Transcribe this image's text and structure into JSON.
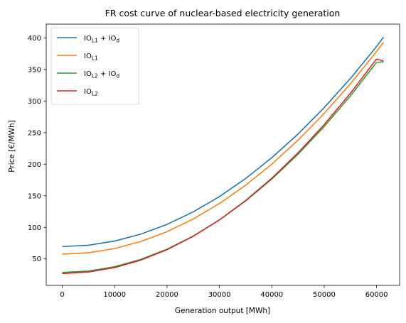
{
  "chart_data": {
    "type": "line",
    "title": "FR cost curve of nuclear-based electricity generation",
    "xlabel": "Generation output [MWh]",
    "ylabel": "Price [€/MWh]",
    "xlim": [
      -3066,
      64396
    ],
    "ylim": [
      8.1,
      421.8
    ],
    "xticks": [
      0,
      10000,
      20000,
      30000,
      40000,
      50000,
      60000
    ],
    "yticks": [
      50,
      100,
      150,
      200,
      250,
      300,
      350,
      400
    ],
    "grid": false,
    "legend_position": "upper-left",
    "x": [
      0,
      5000,
      10000,
      15000,
      20000,
      25000,
      30000,
      35000,
      40000,
      45000,
      50000,
      55000,
      60000,
      61330
    ],
    "series": [
      {
        "base": "IO",
        "sub1": "L1",
        "extra": " + IO",
        "sub2": "d",
        "color": "#1f77b4",
        "values": [
          69.5,
          71.7,
          78.3,
          89.3,
          104.7,
          124.5,
          148.7,
          177.3,
          210.3,
          247.7,
          289.5,
          335.7,
          386.3,
          401.2
        ]
      },
      {
        "base": "IO",
        "sub1": "L1",
        "extra": "",
        "sub2": "",
        "color": "#ff7f0e",
        "values": [
          57.5,
          59.7,
          66.4,
          77.5,
          93.1,
          113.2,
          137.7,
          166.7,
          200.1,
          238.0,
          280.4,
          327.2,
          378.5,
          393.0
        ]
      },
      {
        "base": "IO",
        "sub1": "L2",
        "extra": " + IO",
        "sub2": "d",
        "color": "#2ca02c",
        "values": [
          28.5,
          30.8,
          37.7,
          49.3,
          65.4,
          86.2,
          111.7,
          141.7,
          176.4,
          215.7,
          259.6,
          308.1,
          361.3,
          362.0
        ]
      },
      {
        "base": "IO",
        "sub1": "L2",
        "extra": "",
        "sub2": "",
        "color": "#d62728",
        "values": [
          26.9,
          29.2,
          36.3,
          48.1,
          64.6,
          85.8,
          111.8,
          142.4,
          177.8,
          217.9,
          262.7,
          312.2,
          366.4,
          363.5
        ]
      }
    ]
  }
}
